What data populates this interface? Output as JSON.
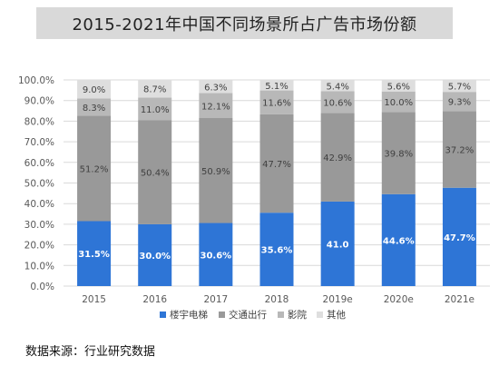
{
  "chart_data": {
    "type": "bar",
    "stacked": true,
    "title": "2015-2021年中国不同场景所占广告市场份额",
    "categories": [
      "2015",
      "2016",
      "2017",
      "2018",
      "2019e",
      "2020e",
      "2021e"
    ],
    "y_ticks": [
      "0.0%",
      "10.0%",
      "20.0%",
      "30.0%",
      "40.0%",
      "50.0%",
      "60.0%",
      "70.0%",
      "80.0%",
      "90.0%",
      "100.0%"
    ],
    "ylim": [
      0,
      100
    ],
    "grid": true,
    "legend_position": "bottom",
    "series": [
      {
        "name": "楼宇电梯",
        "color": "#2e75d6",
        "values": [
          31.5,
          30.0,
          30.6,
          35.6,
          41.0,
          44.6,
          47.7
        ],
        "labels": [
          "31.5%",
          "30.0%",
          "30.6%",
          "35.6%",
          "41.0",
          "44.6%",
          "47.7%"
        ]
      },
      {
        "name": "交通出行",
        "color": "#999999",
        "values": [
          51.2,
          50.4,
          50.9,
          47.7,
          42.9,
          39.8,
          37.2
        ],
        "labels": [
          "51.2%",
          "50.4%",
          "50.9%",
          "47.7%",
          "42.9%",
          "39.8%",
          "37.2%"
        ]
      },
      {
        "name": "影院",
        "color": "#b8b8b8",
        "values": [
          8.3,
          11.0,
          12.1,
          11.6,
          10.6,
          10.0,
          9.3
        ],
        "labels": [
          "8.3%",
          "11.0%",
          "12.1%",
          "11.6%",
          "10.6%",
          "10.0%",
          "9.3%"
        ]
      },
      {
        "name": "其他",
        "color": "#dedede",
        "values": [
          9.0,
          8.7,
          6.3,
          5.1,
          5.4,
          5.6,
          5.7
        ],
        "labels": [
          "9.0%",
          "8.7%",
          "6.3%",
          "5.1%",
          "5.4%",
          "5.6%",
          "5.7%"
        ]
      }
    ]
  },
  "source_text": "数据来源：行业研究数据"
}
